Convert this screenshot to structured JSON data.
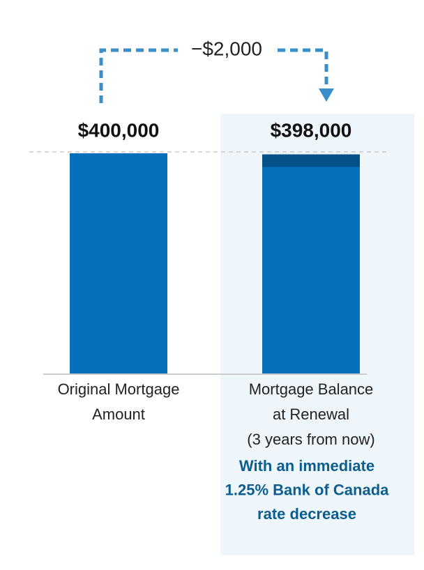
{
  "chart_data": {
    "type": "bar",
    "categories": [
      [
        "Original Mortgage",
        "Amount"
      ],
      [
        "Mortgage Balance",
        "at Renewal",
        "(3 years from now)"
      ]
    ],
    "values": [
      400000,
      398000
    ],
    "value_labels": [
      "$400,000",
      "$398,000"
    ],
    "color": "#0571bb",
    "highlight_color": "#045189",
    "annotation": {
      "value": -2000,
      "label": "−$2,000"
    },
    "note": [
      "With an immediate",
      "1.25% Bank of Canada",
      "rate decrease"
    ]
  }
}
